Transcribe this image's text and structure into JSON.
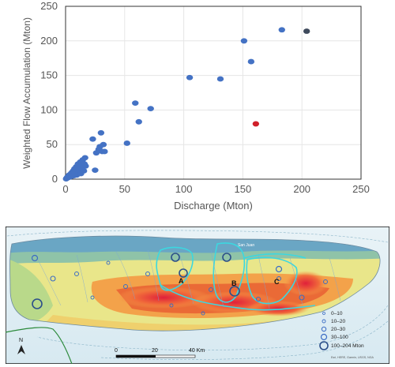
{
  "chart_data": {
    "type": "scatter",
    "xlabel": "Discharge (Mton)",
    "ylabel": "Weighted Flow Accumulation (Mton)",
    "xlim": [
      0,
      250
    ],
    "ylim": [
      0,
      250
    ],
    "x_ticks": [
      "0",
      "50",
      "100",
      "150",
      "200",
      "250"
    ],
    "y_ticks": [
      "0",
      "50",
      "100",
      "150",
      "200",
      "250"
    ],
    "grid": true,
    "points": [
      {
        "x": 0.5,
        "y": 0.5
      },
      {
        "x": 1,
        "y": 1.5
      },
      {
        "x": 1.5,
        "y": 3
      },
      {
        "x": 2,
        "y": 2
      },
      {
        "x": 2.5,
        "y": 4
      },
      {
        "x": 3,
        "y": 6
      },
      {
        "x": 3.5,
        "y": 3
      },
      {
        "x": 4,
        "y": 5
      },
      {
        "x": 4.5,
        "y": 8
      },
      {
        "x": 5,
        "y": 4
      },
      {
        "x": 5.5,
        "y": 10
      },
      {
        "x": 6,
        "y": 7
      },
      {
        "x": 6.5,
        "y": 12
      },
      {
        "x": 7,
        "y": 5
      },
      {
        "x": 7.5,
        "y": 15
      },
      {
        "x": 8,
        "y": 9
      },
      {
        "x": 8.5,
        "y": 11
      },
      {
        "x": 9,
        "y": 18
      },
      {
        "x": 9.5,
        "y": 6
      },
      {
        "x": 10,
        "y": 14
      },
      {
        "x": 10.5,
        "y": 22
      },
      {
        "x": 11,
        "y": 10
      },
      {
        "x": 11.5,
        "y": 17
      },
      {
        "x": 12,
        "y": 13
      },
      {
        "x": 12.5,
        "y": 25
      },
      {
        "x": 13,
        "y": 8
      },
      {
        "x": 13.5,
        "y": 20
      },
      {
        "x": 14,
        "y": 15
      },
      {
        "x": 14.5,
        "y": 28
      },
      {
        "x": 15,
        "y": 18
      },
      {
        "x": 15.5,
        "y": 12
      },
      {
        "x": 16,
        "y": 22
      },
      {
        "x": 16.5,
        "y": 31
      },
      {
        "x": 17,
        "y": 19
      },
      {
        "x": 23,
        "y": 58
      },
      {
        "x": 25,
        "y": 13
      },
      {
        "x": 26,
        "y": 38
      },
      {
        "x": 28,
        "y": 43
      },
      {
        "x": 29,
        "y": 47
      },
      {
        "x": 30,
        "y": 67
      },
      {
        "x": 31,
        "y": 40
      },
      {
        "x": 32,
        "y": 50
      },
      {
        "x": 33,
        "y": 40
      },
      {
        "x": 52,
        "y": 52
      },
      {
        "x": 59,
        "y": 110
      },
      {
        "x": 62,
        "y": 83
      },
      {
        "x": 72,
        "y": 102
      },
      {
        "x": 105,
        "y": 147
      },
      {
        "x": 131,
        "y": 145
      },
      {
        "x": 151,
        "y": 200
      },
      {
        "x": 157,
        "y": 170
      },
      {
        "x": 161,
        "y": 80,
        "color": "#d0202a"
      },
      {
        "x": 183,
        "y": 216
      },
      {
        "x": 204,
        "y": 214,
        "color": "#3e4a5c"
      }
    ]
  },
  "colors": {
    "point": "#4472c4",
    "grid": "#e6e6e6",
    "axis_text": "#555555"
  },
  "map": {
    "watershed_labels": [
      "A",
      "B",
      "C"
    ],
    "place_label": "San Juan",
    "scale_ticks": [
      "0",
      "20",
      "40 Km"
    ],
    "north_label": "N",
    "legend": [
      {
        "label": "0–10"
      },
      {
        "label": "10–20"
      },
      {
        "label": "20–30"
      },
      {
        "label": "30–100"
      },
      {
        "label": "100–204 Mton"
      }
    ],
    "attribution": "Esri, HERE, Garmin, USGS, NGA"
  }
}
